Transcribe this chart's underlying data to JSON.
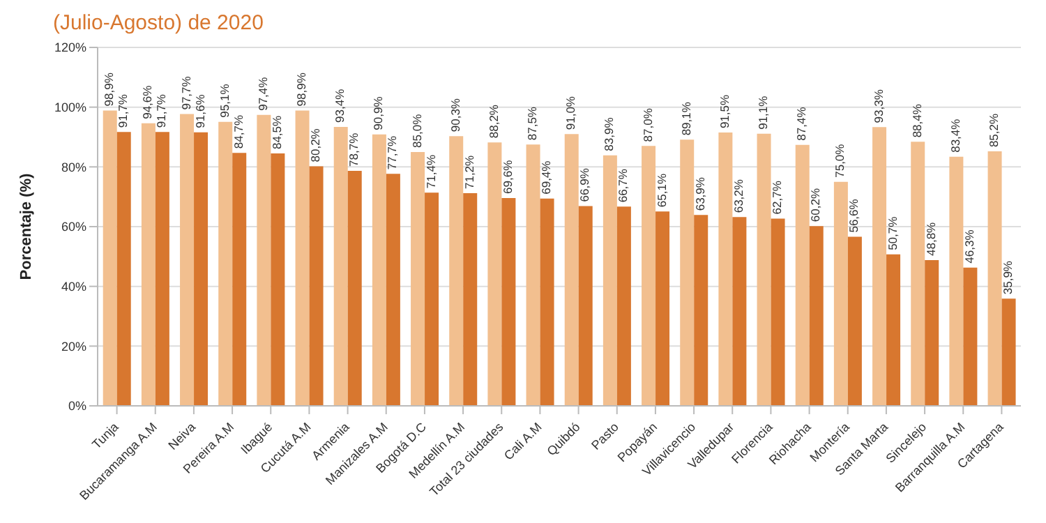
{
  "chart_data": {
    "type": "bar",
    "title": "(Julio-Agosto) de 2020",
    "ylabel": "Porcentaje (%)",
    "categories": [
      "Tunja",
      "Bucaramanga A.M",
      "Neiva",
      "Pereira A.M",
      "Ibagué",
      "Cucutá A.M",
      "Armenia",
      "Manizales A.M",
      "Bogotá D.C",
      "Medellín A.M",
      "Total 23 ciudades",
      "Cali A.M",
      "Quibdó",
      "Pasto",
      "Popayán",
      "Villavicencio",
      "Valledupar",
      "Florencia",
      "Riohacha",
      "Montería",
      "Santa Marta",
      "Sincelejo",
      "Barranquilla A.M",
      "Cartagena"
    ],
    "series": [
      {
        "color": "#f2bf8f",
        "values": [
          98.9,
          94.6,
          97.7,
          95.1,
          97.4,
          98.9,
          93.4,
          90.9,
          85.0,
          90.3,
          88.2,
          87.5,
          91.0,
          83.9,
          87.0,
          89.1,
          91.5,
          91.1,
          87.4,
          75.0,
          93.3,
          88.4,
          83.4,
          85.2
        ],
        "value_labels": [
          "98,9%",
          "94,6%",
          "97,7%",
          "95,1%",
          "97,4%",
          "98,9%",
          "93,4%",
          "90,9%",
          "85,0%",
          "90,3%",
          "88,2%",
          "87,5%",
          "91,0%",
          "83,9%",
          "87,0%",
          "89,1%",
          "91,5%",
          "91,1%",
          "87,4%",
          "75,0%",
          "93,3%",
          "88,4%",
          "83,4%",
          "85,2%"
        ]
      },
      {
        "color": "#d8772f",
        "values": [
          91.7,
          91.7,
          91.6,
          84.7,
          84.5,
          80.2,
          78.7,
          77.7,
          71.4,
          71.2,
          69.6,
          69.4,
          66.9,
          66.7,
          65.1,
          63.9,
          63.2,
          62.7,
          60.2,
          56.6,
          50.7,
          48.8,
          46.3,
          35.9
        ],
        "value_labels": [
          "91,7%",
          "91,7%",
          "91,6%",
          "84,7%",
          "84,5%",
          "80,2%",
          "78,7%",
          "77,7%",
          "71,4%",
          "71,2%",
          "69,6%",
          "69,4%",
          "66,9%",
          "66,7%",
          "65,1%",
          "63,9%",
          "63,2%",
          "62,7%",
          "60,2%",
          "56,6%",
          "50,7%",
          "48,8%",
          "46,3%",
          "35,9%"
        ]
      }
    ],
    "ylim": [
      0,
      120
    ],
    "yticks": [
      {
        "value": 0,
        "label": "0%"
      },
      {
        "value": 20,
        "label": "20%"
      },
      {
        "value": 40,
        "label": "40%"
      },
      {
        "value": 60,
        "label": "60%"
      },
      {
        "value": 80,
        "label": "80%"
      },
      {
        "value": 100,
        "label": "100%"
      },
      {
        "value": 120,
        "label": "120%"
      }
    ],
    "grid": "y",
    "legend": false
  }
}
